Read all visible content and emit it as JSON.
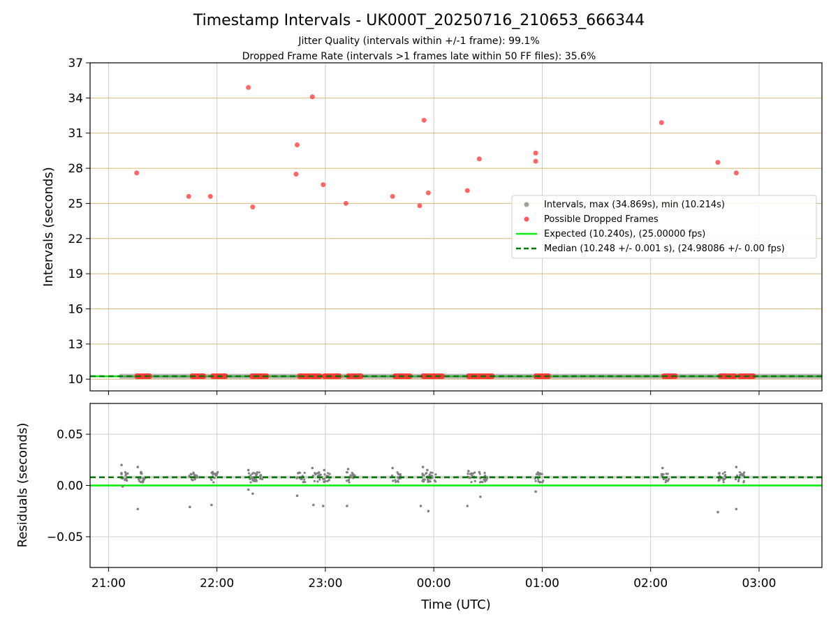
{
  "figure": {
    "title": "Timestamp Intervals - UK000T_20250716_210653_666344",
    "subtitle_1": "Jitter Quality (intervals within +/-1 frame): 99.1%",
    "subtitle_2": "Dropped Frame Rate (intervals >1 frames late within 50 FF files): 35.6%"
  },
  "colors": {
    "intervals": "#808080",
    "dropped": "#ff3333",
    "expected": "#00ee00",
    "median": "#007700",
    "y_grid": "#d4b878",
    "x_grid": "#cccccc"
  },
  "chart_data": [
    {
      "type": "scatter",
      "xlabel": "",
      "ylabel": "Intervals (seconds)",
      "xlim": [
        -0.17,
        6.58
      ],
      "ylim": [
        9.0,
        37.0
      ],
      "y_ticks": [
        10,
        13,
        16,
        19,
        22,
        25,
        28,
        31,
        34,
        37
      ],
      "x_ticks": [
        0,
        1,
        2,
        3,
        4,
        5,
        6
      ],
      "x_tick_labels": [],
      "grid": true,
      "legend_position": "center-right",
      "legend": {
        "intervals": "Intervals, max (34.869s), min (10.214s)",
        "dropped": "Possible Dropped Frames",
        "expected": "Expected (10.240s), (25.00000 fps)",
        "median": "Median (10.248 +/- 0.001 s), (24.98086 +/- 0.00 fps)"
      },
      "expected_value": 10.24,
      "median_value": 10.248,
      "dropped_frames": [
        {
          "x": 0.26,
          "y": 27.6
        },
        {
          "x": 0.74,
          "y": 25.6
        },
        {
          "x": 0.94,
          "y": 25.6
        },
        {
          "x": 1.29,
          "y": 34.9
        },
        {
          "x": 1.33,
          "y": 24.7
        },
        {
          "x": 1.73,
          "y": 27.5
        },
        {
          "x": 1.74,
          "y": 30.0
        },
        {
          "x": 1.88,
          "y": 34.1
        },
        {
          "x": 1.98,
          "y": 26.6
        },
        {
          "x": 2.19,
          "y": 25.0
        },
        {
          "x": 2.62,
          "y": 25.6
        },
        {
          "x": 2.87,
          "y": 24.8
        },
        {
          "x": 2.91,
          "y": 32.1
        },
        {
          "x": 2.95,
          "y": 25.9
        },
        {
          "x": 3.31,
          "y": 26.1
        },
        {
          "x": 3.42,
          "y": 28.8
        },
        {
          "x": 3.94,
          "y": 29.3
        },
        {
          "x": 3.94,
          "y": 28.6
        },
        {
          "x": 5.1,
          "y": 31.9
        },
        {
          "x": 5.62,
          "y": 28.5
        },
        {
          "x": 5.79,
          "y": 27.6
        }
      ],
      "dropped_bands": [
        [
          0.24,
          0.4
        ],
        [
          0.75,
          0.9
        ],
        [
          0.94,
          1.1
        ],
        [
          1.3,
          1.48
        ],
        [
          1.74,
          1.97
        ],
        [
          1.97,
          2.15
        ],
        [
          2.19,
          2.35
        ],
        [
          2.62,
          2.8
        ],
        [
          2.88,
          3.1
        ],
        [
          3.3,
          3.56
        ],
        [
          3.92,
          4.08
        ],
        [
          5.1,
          5.25
        ],
        [
          5.62,
          5.8
        ],
        [
          5.8,
          5.97
        ]
      ],
      "interval_band": [
        0.1,
        6.58
      ]
    },
    {
      "type": "scatter",
      "xlabel": "Time (UTC)",
      "ylabel": "Residuals (seconds)",
      "xlim": [
        -0.17,
        6.58
      ],
      "ylim": [
        -0.08,
        0.08
      ],
      "y_ticks": [
        0.05,
        0.0,
        -0.05
      ],
      "y_tick_labels": [
        "0.05",
        "0.00",
        "−0.05"
      ],
      "x_ticks": [
        0,
        1,
        2,
        3,
        4,
        5,
        6
      ],
      "x_tick_labels": [
        "21:00",
        "22:00",
        "23:00",
        "00:00",
        "01:00",
        "02:00",
        "03:00"
      ],
      "grid": true,
      "expected_value": 0.0,
      "median_value": 0.008,
      "residual_outliers": [
        {
          "x": 0.12,
          "y": 0.02
        },
        {
          "x": 0.12,
          "y": 0.012
        },
        {
          "x": 0.13,
          "y": -0.001
        },
        {
          "x": 0.27,
          "y": 0.018
        },
        {
          "x": 0.27,
          "y": -0.023
        },
        {
          "x": 0.3,
          "y": 0.013
        },
        {
          "x": 0.75,
          "y": -0.021
        },
        {
          "x": 0.76,
          "y": 0.011
        },
        {
          "x": 0.95,
          "y": -0.019
        },
        {
          "x": 0.96,
          "y": 0.013
        },
        {
          "x": 1.29,
          "y": 0.015
        },
        {
          "x": 1.29,
          "y": -0.004
        },
        {
          "x": 1.33,
          "y": -0.008
        },
        {
          "x": 1.74,
          "y": -0.01
        },
        {
          "x": 1.75,
          "y": 0.012
        },
        {
          "x": 1.88,
          "y": 0.017
        },
        {
          "x": 1.89,
          "y": -0.019
        },
        {
          "x": 1.98,
          "y": -0.02
        },
        {
          "x": 1.99,
          "y": 0.015
        },
        {
          "x": 2.2,
          "y": -0.02
        },
        {
          "x": 2.21,
          "y": 0.016
        },
        {
          "x": 2.62,
          "y": 0.017
        },
        {
          "x": 2.88,
          "y": -0.02
        },
        {
          "x": 2.9,
          "y": 0.018
        },
        {
          "x": 2.95,
          "y": -0.025
        },
        {
          "x": 2.94,
          "y": 0.015
        },
        {
          "x": 3.31,
          "y": -0.02
        },
        {
          "x": 3.32,
          "y": 0.014
        },
        {
          "x": 3.43,
          "y": -0.011
        },
        {
          "x": 3.42,
          "y": 0.013
        },
        {
          "x": 3.94,
          "y": -0.006
        },
        {
          "x": 3.95,
          "y": 0.011
        },
        {
          "x": 5.11,
          "y": 0.017
        },
        {
          "x": 5.62,
          "y": -0.026
        },
        {
          "x": 5.63,
          "y": 0.012
        },
        {
          "x": 5.79,
          "y": -0.023
        },
        {
          "x": 5.79,
          "y": 0.018
        }
      ],
      "residual_clusters": [
        0.12,
        0.28,
        0.76,
        0.96,
        1.3,
        1.36,
        1.75,
        1.9,
        1.99,
        2.21,
        2.63,
        2.91,
        2.96,
        3.32,
        3.43,
        3.95,
        5.11,
        5.63,
        5.8
      ]
    }
  ]
}
